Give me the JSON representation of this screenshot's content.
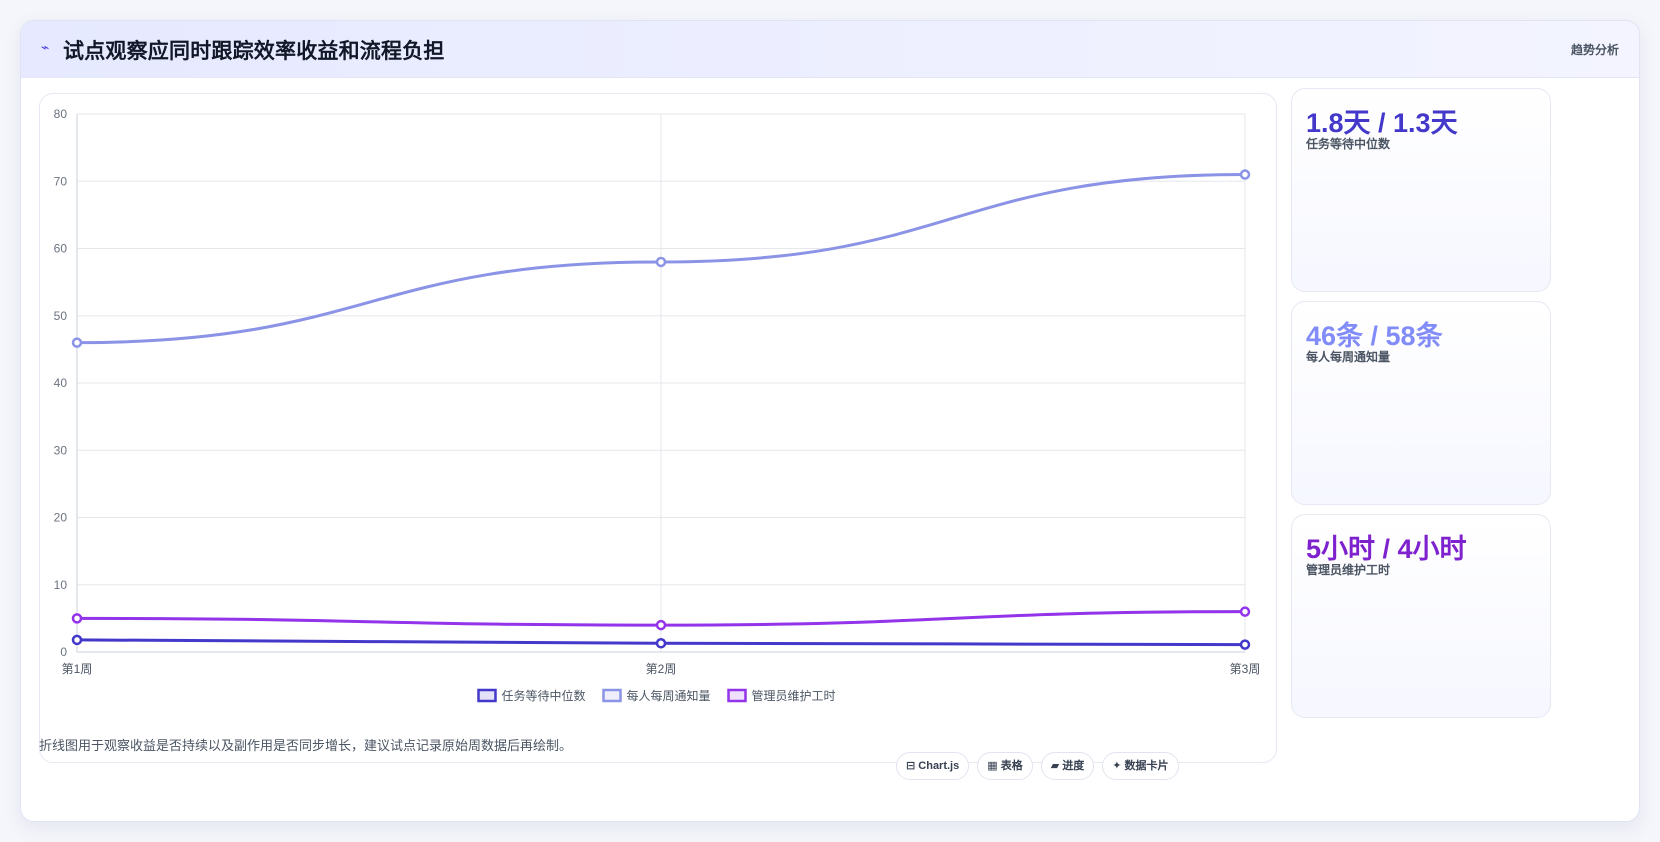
{
  "header": {
    "icon": "sparkline-icon",
    "title": "试点观察应同时跟踪效率收益和流程负担",
    "tag": "趋势分析"
  },
  "metrics": [
    {
      "value": "1.8天 / 1.3天",
      "label": "任务等待中位数",
      "color": "#4338ca"
    },
    {
      "value": "46条 / 58条",
      "label": "每人每周通知量",
      "color": "#818cf8"
    },
    {
      "value": "5小时 / 4小时",
      "label": "管理员维护工时",
      "color": "#7e22ce"
    }
  ],
  "footer": {
    "note": "折线图用于观察收益是否持续以及副作用是否同步增长，建议试点记录原始周数据后再绘制。",
    "pills": [
      "Chart.js",
      "表格",
      "进度",
      "数据卡片"
    ]
  },
  "chart_data": {
    "type": "line",
    "categories": [
      "第1周",
      "第2周",
      "第3周"
    ],
    "ylim": [
      0,
      80
    ],
    "yticks": [
      0,
      10,
      20,
      30,
      40,
      50,
      60,
      70,
      80
    ],
    "grid": true,
    "legend_position": "bottom",
    "series": [
      {
        "name": "任务等待中位数",
        "values": [
          1.8,
          1.3,
          1.1
        ],
        "color": "#4338ca"
      },
      {
        "name": "每人每周通知量",
        "values": [
          46,
          58,
          71
        ],
        "color": "#8b93e6"
      },
      {
        "name": "管理员维护工时",
        "values": [
          5,
          4,
          6
        ],
        "color": "#9333ea"
      }
    ]
  }
}
